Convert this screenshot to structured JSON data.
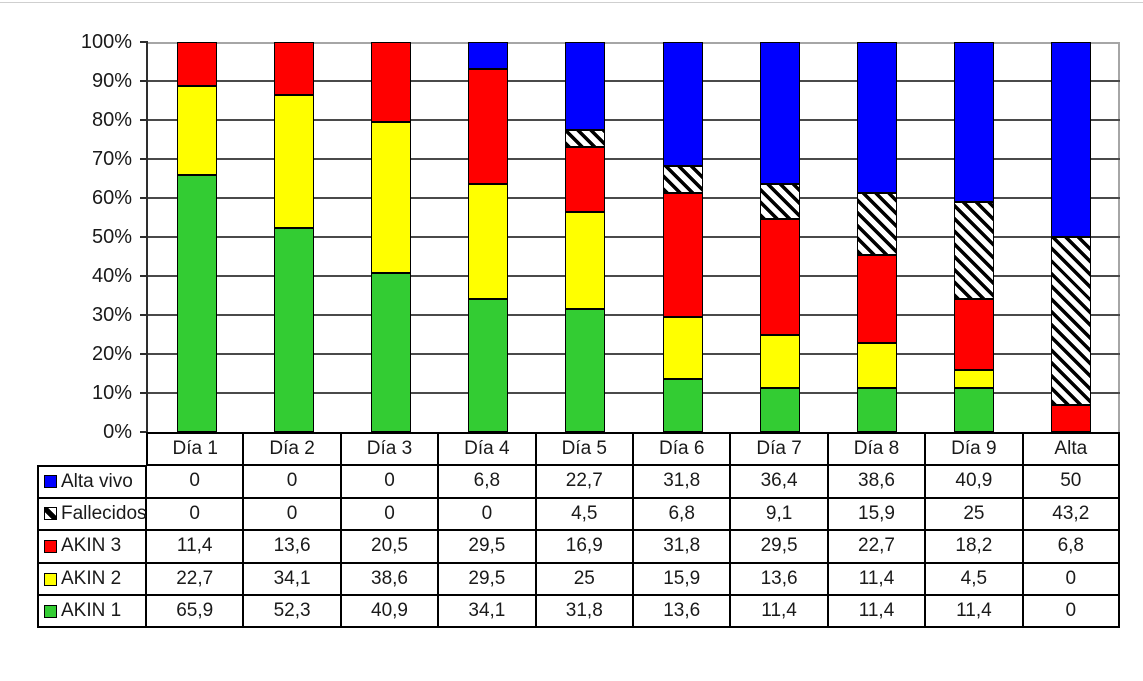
{
  "chart_data": {
    "type": "bar",
    "subtype": "stacked-100-percent-column",
    "title": "",
    "xlabel": "",
    "ylabel": "",
    "categories": [
      "Día 1",
      "Día 2",
      "Día 3",
      "Día 4",
      "Día 5",
      "Día 6",
      "Día 7",
      "Día 8",
      "Día 9",
      "Alta"
    ],
    "series": [
      {
        "name": "Alta vivo",
        "color": "#0000ff",
        "pattern": "solid",
        "values": [
          0,
          0,
          0,
          6.8,
          22.7,
          31.8,
          36.4,
          38.6,
          40.9,
          50
        ]
      },
      {
        "name": "Fallecidos",
        "color": "#000000",
        "pattern": "diagonal-hatch",
        "values": [
          0,
          0,
          0,
          0,
          4.5,
          6.8,
          9.1,
          15.9,
          25,
          43.2
        ]
      },
      {
        "name": "AKIN 3",
        "color": "#ff0000",
        "pattern": "solid",
        "values": [
          11.4,
          13.6,
          20.5,
          29.5,
          16.9,
          31.8,
          29.5,
          22.7,
          18.2,
          6.8
        ]
      },
      {
        "name": "AKIN 2",
        "color": "#ffff00",
        "pattern": "solid",
        "values": [
          22.7,
          34.1,
          38.6,
          29.5,
          25,
          15.9,
          13.6,
          11.4,
          4.5,
          0
        ]
      },
      {
        "name": "AKIN 1",
        "color": "#33cc33",
        "pattern": "solid",
        "values": [
          65.9,
          52.3,
          40.9,
          34.1,
          31.8,
          13.6,
          11.4,
          11.4,
          11.4,
          0
        ]
      }
    ],
    "stack_order_bottom_to_top": [
      "AKIN 1",
      "AKIN 2",
      "AKIN 3",
      "Fallecidos",
      "Alta vivo"
    ],
    "y_axis": {
      "min": 0,
      "max": 100,
      "tick_labels_top_to_bottom": [
        "100%",
        "90%",
        "80%",
        "70%",
        "60%",
        "50%",
        "40%",
        "30%",
        "20%",
        "10%",
        "0%"
      ],
      "grid": true
    },
    "legend_position": "table-left-column",
    "number_format": "decimal-comma",
    "colors": {
      "plot_border": "#a6a6a6",
      "gridline": "#4a4a4a",
      "axis": "#2e2e2e",
      "bar_outline": "#000000",
      "hatch_foreground": "#000000",
      "hatch_background": "#ffffff"
    }
  }
}
